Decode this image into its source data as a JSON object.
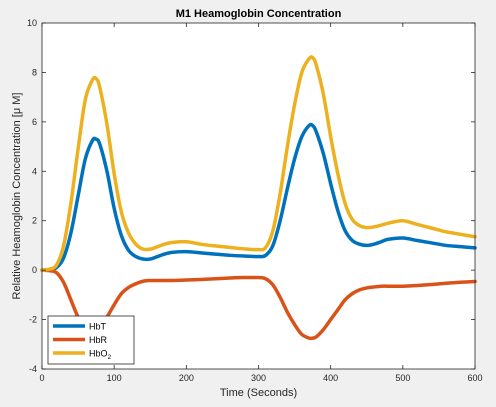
{
  "chart_data": {
    "type": "line",
    "title": "M1 Heamoglobin Concentration",
    "xlabel": "Time (Seconds)",
    "ylabel": "Relative Heamoglobin Concentration [μ M]",
    "xlim": [
      0,
      600
    ],
    "ylim": [
      -4,
      10
    ],
    "xticks": [
      0,
      100,
      200,
      300,
      400,
      500,
      600
    ],
    "yticks": [
      -4,
      -2,
      0,
      2,
      4,
      6,
      8,
      10
    ],
    "grid": false,
    "legend_position": "bottom-left",
    "series": [
      {
        "name": "HbT",
        "color": "#0072BD",
        "x": [
          0,
          10,
          20,
          30,
          40,
          50,
          60,
          70,
          75,
          80,
          90,
          100,
          110,
          120,
          130,
          140,
          150,
          160,
          170,
          180,
          200,
          220,
          240,
          260,
          280,
          300,
          310,
          320,
          330,
          340,
          350,
          360,
          370,
          375,
          380,
          390,
          400,
          410,
          420,
          430,
          440,
          450,
          460,
          470,
          480,
          500,
          520,
          540,
          560,
          580,
          600
        ],
        "y": [
          0,
          0.02,
          0.1,
          0.5,
          1.5,
          3.0,
          4.5,
          5.25,
          5.3,
          5.1,
          4.0,
          2.5,
          1.4,
          0.8,
          0.55,
          0.45,
          0.45,
          0.55,
          0.65,
          0.72,
          0.75,
          0.7,
          0.65,
          0.6,
          0.57,
          0.55,
          0.6,
          1.0,
          2.0,
          3.3,
          4.5,
          5.4,
          5.85,
          5.85,
          5.6,
          4.7,
          3.5,
          2.4,
          1.6,
          1.2,
          1.05,
          1.0,
          1.05,
          1.15,
          1.25,
          1.3,
          1.2,
          1.1,
          1.0,
          0.95,
          0.9
        ]
      },
      {
        "name": "HbR",
        "color": "#D95319",
        "x": [
          0,
          10,
          20,
          30,
          40,
          50,
          60,
          70,
          75,
          80,
          90,
          100,
          110,
          120,
          130,
          140,
          150,
          160,
          170,
          180,
          200,
          220,
          240,
          260,
          280,
          300,
          310,
          320,
          330,
          340,
          350,
          360,
          370,
          375,
          380,
          390,
          400,
          410,
          420,
          430,
          440,
          450,
          460,
          470,
          480,
          500,
          520,
          540,
          560,
          580,
          600
        ],
        "y": [
          0,
          -0.02,
          -0.1,
          -0.5,
          -1.2,
          -1.9,
          -2.3,
          -2.4,
          -2.4,
          -2.3,
          -1.9,
          -1.4,
          -0.95,
          -0.7,
          -0.55,
          -0.45,
          -0.42,
          -0.42,
          -0.42,
          -0.42,
          -0.4,
          -0.38,
          -0.35,
          -0.32,
          -0.3,
          -0.3,
          -0.35,
          -0.6,
          -1.1,
          -1.7,
          -2.2,
          -2.6,
          -2.75,
          -2.75,
          -2.7,
          -2.4,
          -2.0,
          -1.6,
          -1.2,
          -0.95,
          -0.8,
          -0.72,
          -0.68,
          -0.65,
          -0.65,
          -0.65,
          -0.62,
          -0.58,
          -0.53,
          -0.49,
          -0.46
        ]
      },
      {
        "name": "HbO",
        "name_subscript": "2",
        "color": "#EDB120",
        "x": [
          0,
          10,
          20,
          30,
          40,
          50,
          60,
          70,
          75,
          80,
          90,
          100,
          110,
          120,
          130,
          140,
          150,
          160,
          170,
          180,
          200,
          220,
          240,
          260,
          280,
          300,
          310,
          320,
          330,
          340,
          350,
          360,
          370,
          375,
          380,
          390,
          400,
          410,
          420,
          430,
          440,
          450,
          460,
          470,
          480,
          500,
          520,
          540,
          560,
          580,
          600
        ],
        "y": [
          0,
          0.04,
          0.2,
          1.0,
          2.7,
          4.9,
          6.9,
          7.7,
          7.75,
          7.4,
          5.9,
          3.9,
          2.35,
          1.5,
          1.05,
          0.85,
          0.85,
          0.95,
          1.05,
          1.12,
          1.15,
          1.05,
          0.98,
          0.92,
          0.86,
          0.83,
          0.92,
          1.6,
          3.1,
          5.0,
          6.7,
          8.0,
          8.55,
          8.6,
          8.3,
          7.1,
          5.4,
          3.9,
          2.7,
          2.05,
          1.8,
          1.72,
          1.75,
          1.82,
          1.9,
          2.0,
          1.85,
          1.7,
          1.55,
          1.45,
          1.35
        ]
      }
    ]
  }
}
